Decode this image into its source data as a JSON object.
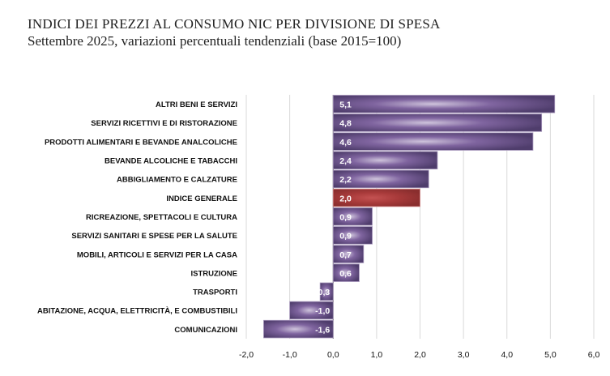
{
  "chart_data": {
    "type": "bar",
    "orientation": "horizontal",
    "title": "INDICI DEI PREZZI AL CONSUMO NIC PER DIVISIONE DI SPESA",
    "subtitle": "Settembre 2025, variazioni percentuali tendenziali (base 2015=100)",
    "categories": [
      "ALTRI BENI E SERVIZI",
      "SERVIZI RICETTIVI E DI RISTORAZIONE",
      "PRODOTTI ALIMENTARI E BEVANDE ANALCOLICHE",
      "BEVANDE ALCOLICHE E TABACCHI",
      "ABBIGLIAMENTO E CALZATURE",
      "INDICE GENERALE",
      "RICREAZIONE, SPETTACOLI E CULTURA",
      "SERVIZI SANITARI E SPESE PER LA SALUTE",
      "MOBILI, ARTICOLI E SERVIZI PER LA CASA",
      "ISTRUZIONE",
      "TRASPORTI",
      "ABITAZIONE, ACQUA, ELETTRICITÀ, E COMBUSTIBILI",
      "COMUNICAZIONI"
    ],
    "values": [
      5.1,
      4.8,
      4.6,
      2.4,
      2.2,
      2.0,
      0.9,
      0.9,
      0.7,
      0.6,
      -0.3,
      -1.0,
      -1.6
    ],
    "data_labels": [
      "5,1",
      "4,8",
      "4,6",
      "2,4",
      "2,2",
      "2,0",
      "0,9",
      "0,9",
      "0,7",
      "0,6",
      "-0,3",
      "-1,0",
      "-1,6"
    ],
    "highlight_index": 5,
    "xlim": [
      -2.0,
      6.0
    ],
    "xticks": [
      -2,
      -1,
      0,
      1,
      2,
      3,
      4,
      5,
      6
    ],
    "xtick_labels": [
      "-2,0",
      "-1,0",
      "0,0",
      "1,0",
      "2,0",
      "3,0",
      "4,0",
      "5,0",
      "6,0"
    ],
    "grid": true,
    "legend": "none",
    "colors": {
      "bar": "#5e4a80",
      "bar_light": "#cfc4dc",
      "highlight": "#a83a3a",
      "highlight_light": "#c45252",
      "grid": "#d9d9d9"
    }
  }
}
